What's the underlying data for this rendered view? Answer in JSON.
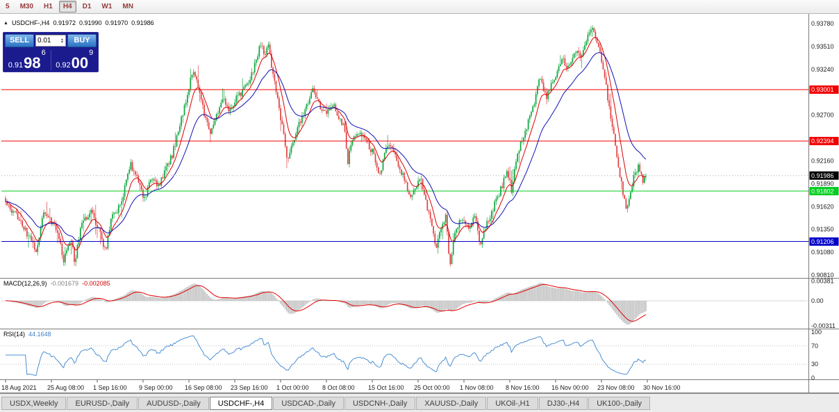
{
  "toolbar": {
    "periods": [
      {
        "label": "5",
        "active": false
      },
      {
        "label": "M30",
        "active": false
      },
      {
        "label": "H1",
        "active": false
      },
      {
        "label": "H4",
        "active": true
      },
      {
        "label": "D1",
        "active": false
      },
      {
        "label": "W1",
        "active": false
      },
      {
        "label": "MN",
        "active": false
      }
    ]
  },
  "chart": {
    "header": {
      "collapse_icon": "▲",
      "symbol": "USDCHF-,H4",
      "open": "0.91972",
      "high": "0.91990",
      "low": "0.91970",
      "close": "0.91986"
    },
    "trade_panel": {
      "sell_label": "SELL",
      "buy_label": "BUY",
      "lot_value": "0.01",
      "sell_price": {
        "small": "0.91",
        "big": "98",
        "sup": "6"
      },
      "buy_price": {
        "small": "0.92",
        "big": "00",
        "sup": "9"
      }
    },
    "y_axis_labels": [
      {
        "text": "0.93780",
        "price": 0.9378
      },
      {
        "text": "0.93510",
        "price": 0.9351
      },
      {
        "text": "0.93240",
        "price": 0.9324
      },
      {
        "text": "0.92700",
        "price": 0.927
      },
      {
        "text": "0.92160",
        "price": 0.9216
      },
      {
        "text": "0.91890",
        "price": 0.9189
      },
      {
        "text": "0.91620",
        "price": 0.9162
      },
      {
        "text": "0.91350",
        "price": 0.9135
      },
      {
        "text": "0.91080",
        "price": 0.9108
      },
      {
        "text": "0.90810",
        "price": 0.9081
      }
    ],
    "price_lines": [
      {
        "text": "0.93001",
        "price": 0.93001,
        "color": "#f20000",
        "name": "resistance-line-1"
      },
      {
        "text": "0.92394",
        "price": 0.92394,
        "color": "#f20000",
        "name": "resistance-line-2"
      },
      {
        "text": "0.91802",
        "price": 0.91802,
        "color": "#00cd1e",
        "name": "support-line-green"
      },
      {
        "text": "0.91206",
        "price": 0.91206,
        "color": "#0000c8",
        "name": "support-line-blue"
      }
    ],
    "current_price": {
      "text": "0.91986",
      "price": 0.91986
    },
    "x_axis_labels": [
      "18 Aug 2021",
      "25 Aug 08:00",
      "1 Sep 16:00",
      "9 Sep 00:00",
      "16 Sep 08:00",
      "23 Sep 16:00",
      "1 Oct 00:00",
      "8 Oct 08:00",
      "15 Oct 16:00",
      "25 Oct 00:00",
      "1 Nov 08:00",
      "8 Nov 16:00",
      "16 Nov 00:00",
      "23 Nov 08:00",
      "30 Nov 16:00"
    ]
  },
  "macd": {
    "title": "MACD(12,26,9)",
    "value_main": "-0.001679",
    "value_signal": "-0.002085",
    "axis_labels": [
      "0.00381",
      "0.00",
      "-0.00311"
    ]
  },
  "rsi": {
    "title": "RSI(14)",
    "value": "44.1648",
    "axis_labels": [
      {
        "text": "100",
        "value": 100
      },
      {
        "text": "70",
        "value": 70
      },
      {
        "text": "30",
        "value": 30
      },
      {
        "text": "0",
        "value": 0
      }
    ]
  },
  "tabs": [
    {
      "label": "USDX,Weekly",
      "active": false
    },
    {
      "label": "EURUSD-,Daily",
      "active": false
    },
    {
      "label": "AUDUSD-,Daily",
      "active": false
    },
    {
      "label": "USDCHF-,H4",
      "active": true
    },
    {
      "label": "USDCAD-,Daily",
      "active": false
    },
    {
      "label": "USDCNH-,Daily",
      "active": false
    },
    {
      "label": "XAUUSD-,Daily",
      "active": false
    },
    {
      "label": "UKOil-,H1",
      "active": false
    },
    {
      "label": "DJ30-,H4",
      "active": false
    },
    {
      "label": "UK100-,Daily",
      "active": false
    }
  ],
  "colors": {
    "candle_up": "#0ca53c",
    "candle_down": "#e14040",
    "ma_fast": "#dd0000",
    "ma_slow": "#0f0fb4",
    "macd_hist": "#c2c2c2",
    "macd_signal": "#e00000",
    "rsi_line": "#4a8fd3",
    "current_price_box": "#000000",
    "axis_text": "#1a1a1a"
  },
  "chart_data": {
    "type": "candlestick",
    "symbol": "USDCHF-",
    "timeframe": "H4",
    "y_range": [
      0.90777,
      0.93879
    ],
    "x_range": [
      "18 Aug 2021",
      "30 Nov 16:00"
    ],
    "last_ohlc": {
      "open": 0.91972,
      "high": 0.9199,
      "low": 0.9197,
      "close": 0.91986
    },
    "last_close": 0.91986,
    "horizontal_levels": [
      0.93001,
      0.92394,
      0.91802,
      0.91206
    ],
    "bar_count": 420,
    "indicators": {
      "ma_fast": 9,
      "ma_slow": 26,
      "macd": [
        12,
        26,
        9
      ],
      "macd_current": [
        -0.001679,
        -0.002085
      ],
      "rsi_period": 14,
      "rsi_current": 44.1648
    },
    "price_path_anchors": [
      [
        0,
        0.9166
      ],
      [
        0.018,
        0.915
      ],
      [
        0.035,
        0.9128
      ],
      [
        0.048,
        0.9112
      ],
      [
        0.059,
        0.9152
      ],
      [
        0.078,
        0.914
      ],
      [
        0.091,
        0.9098
      ],
      [
        0.102,
        0.9126
      ],
      [
        0.108,
        0.9096
      ],
      [
        0.119,
        0.9145
      ],
      [
        0.134,
        0.9155
      ],
      [
        0.149,
        0.9128
      ],
      [
        0.156,
        0.9108
      ],
      [
        0.165,
        0.9148
      ],
      [
        0.178,
        0.9162
      ],
      [
        0.187,
        0.9186
      ],
      [
        0.195,
        0.9212
      ],
      [
        0.206,
        0.9194
      ],
      [
        0.217,
        0.917
      ],
      [
        0.228,
        0.9196
      ],
      [
        0.239,
        0.9186
      ],
      [
        0.249,
        0.9205
      ],
      [
        0.26,
        0.9222
      ],
      [
        0.271,
        0.9255
      ],
      [
        0.28,
        0.9282
      ],
      [
        0.289,
        0.9312
      ],
      [
        0.295,
        0.9322
      ],
      [
        0.304,
        0.929
      ],
      [
        0.312,
        0.9266
      ],
      [
        0.321,
        0.9248
      ],
      [
        0.33,
        0.927
      ],
      [
        0.341,
        0.9288
      ],
      [
        0.351,
        0.9274
      ],
      [
        0.362,
        0.9292
      ],
      [
        0.373,
        0.93
      ],
      [
        0.384,
        0.9316
      ],
      [
        0.393,
        0.934
      ],
      [
        0.399,
        0.9356
      ],
      [
        0.405,
        0.9338
      ],
      [
        0.41,
        0.9354
      ],
      [
        0.417,
        0.932
      ],
      [
        0.423,
        0.9294
      ],
      [
        0.43,
        0.9266
      ],
      [
        0.436,
        0.9238
      ],
      [
        0.44,
        0.9216
      ],
      [
        0.447,
        0.9236
      ],
      [
        0.46,
        0.9262
      ],
      [
        0.471,
        0.9284
      ],
      [
        0.479,
        0.93
      ],
      [
        0.488,
        0.9284
      ],
      [
        0.499,
        0.9272
      ],
      [
        0.51,
        0.9284
      ],
      [
        0.521,
        0.9268
      ],
      [
        0.529,
        0.9256
      ],
      [
        0.534,
        0.9212
      ],
      [
        0.54,
        0.9238
      ],
      [
        0.551,
        0.9252
      ],
      [
        0.562,
        0.924
      ],
      [
        0.573,
        0.9226
      ],
      [
        0.581,
        0.9208
      ],
      [
        0.586,
        0.9198
      ],
      [
        0.592,
        0.9226
      ],
      [
        0.603,
        0.9236
      ],
      [
        0.614,
        0.921
      ],
      [
        0.625,
        0.919
      ],
      [
        0.633,
        0.917
      ],
      [
        0.64,
        0.9188
      ],
      [
        0.649,
        0.9194
      ],
      [
        0.657,
        0.9164
      ],
      [
        0.666,
        0.9138
      ],
      [
        0.672,
        0.9112
      ],
      [
        0.679,
        0.9136
      ],
      [
        0.688,
        0.915
      ],
      [
        0.694,
        0.9092
      ],
      [
        0.7,
        0.9128
      ],
      [
        0.711,
        0.915
      ],
      [
        0.722,
        0.9136
      ],
      [
        0.733,
        0.915
      ],
      [
        0.742,
        0.9116
      ],
      [
        0.748,
        0.9134
      ],
      [
        0.757,
        0.9152
      ],
      [
        0.768,
        0.9172
      ],
      [
        0.777,
        0.919
      ],
      [
        0.783,
        0.9206
      ],
      [
        0.79,
        0.9182
      ],
      [
        0.798,
        0.9222
      ],
      [
        0.809,
        0.9246
      ],
      [
        0.82,
        0.927
      ],
      [
        0.829,
        0.9296
      ],
      [
        0.835,
        0.9318
      ],
      [
        0.844,
        0.9288
      ],
      [
        0.852,
        0.9306
      ],
      [
        0.861,
        0.932
      ],
      [
        0.87,
        0.9336
      ],
      [
        0.876,
        0.9322
      ],
      [
        0.883,
        0.933
      ],
      [
        0.891,
        0.9346
      ],
      [
        0.9,
        0.9338
      ],
      [
        0.909,
        0.9362
      ],
      [
        0.917,
        0.9374
      ],
      [
        0.924,
        0.9356
      ],
      [
        0.93,
        0.9338
      ],
      [
        0.937,
        0.9308
      ],
      [
        0.943,
        0.9276
      ],
      [
        0.95,
        0.9246
      ],
      [
        0.956,
        0.9214
      ],
      [
        0.963,
        0.9184
      ],
      [
        0.97,
        0.9154
      ],
      [
        0.976,
        0.9178
      ],
      [
        0.982,
        0.92
      ],
      [
        0.989,
        0.9212
      ],
      [
        0.995,
        0.9192
      ],
      [
        1,
        0.91986
      ]
    ]
  }
}
